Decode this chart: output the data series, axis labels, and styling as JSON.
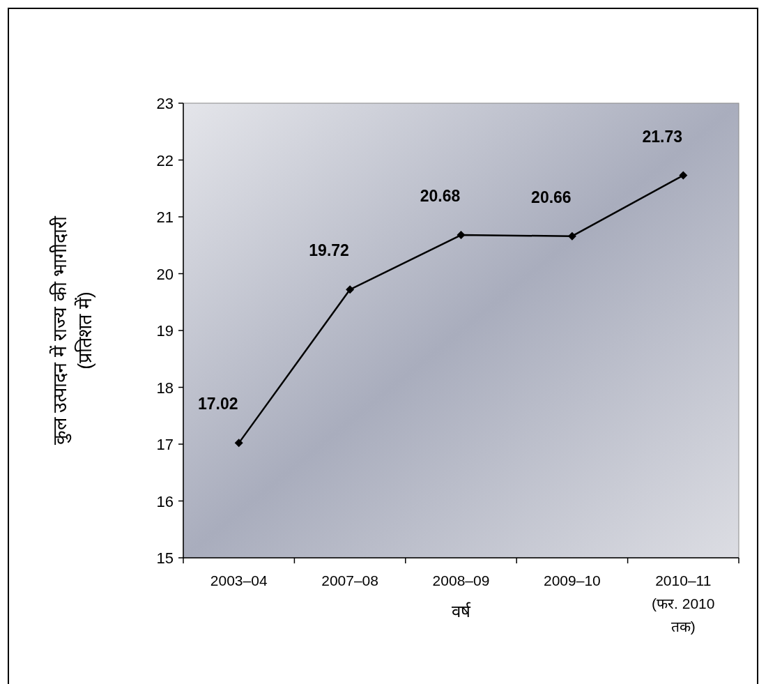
{
  "chart_data": {
    "type": "line",
    "ylabel": "कुल उत्पादन में राज्य की भागीदारी (प्रतिशत में)",
    "xlabel": "वर्ष",
    "categories": [
      "2003–04",
      "2007–08",
      "2008–09",
      "2009–10",
      "2010–11 (फर. 2010 तक)"
    ],
    "series": [
      {
        "color": "#000000",
        "values": [
          17.02,
          19.72,
          20.68,
          20.66,
          21.73
        ]
      }
    ],
    "ylim": [
      15,
      23
    ],
    "yticks": [
      15,
      16,
      17,
      18,
      19,
      20,
      21,
      22,
      23
    ],
    "marker": "diamond",
    "data_labels": true,
    "grid": false
  }
}
